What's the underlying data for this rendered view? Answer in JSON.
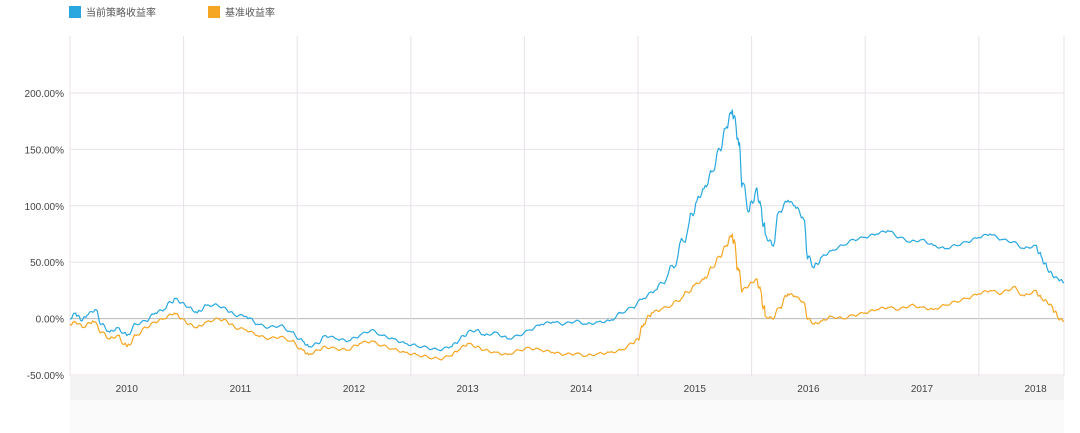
{
  "chart_data": {
    "type": "line",
    "title": "",
    "xlabel": "",
    "ylabel": "",
    "x_ticks": [
      "2010",
      "2011",
      "2012",
      "2013",
      "2014",
      "2015",
      "2016",
      "2017",
      "2018"
    ],
    "x_range": [
      2009.5,
      2018.25
    ],
    "y_ticks": [
      "200.00%",
      "150.00%",
      "100.00%",
      "50.00%",
      "0.00%",
      "-50.00%"
    ],
    "ylim": [
      -50,
      200
    ],
    "grid": true,
    "legend_position": "top-left",
    "series": [
      {
        "name": "当前策略收益率",
        "color": "#29a8e0",
        "points": [
          [
            2009.5,
            0
          ],
          [
            2009.55,
            5
          ],
          [
            2009.6,
            -2
          ],
          [
            2009.65,
            3
          ],
          [
            2009.72,
            8
          ],
          [
            2009.78,
            -5
          ],
          [
            2009.85,
            -12
          ],
          [
            2009.92,
            -8
          ],
          [
            2010.0,
            -15
          ],
          [
            2010.08,
            -5
          ],
          [
            2010.17,
            -2
          ],
          [
            2010.25,
            5
          ],
          [
            2010.33,
            8
          ],
          [
            2010.42,
            18
          ],
          [
            2010.48,
            14
          ],
          [
            2010.55,
            10
          ],
          [
            2010.62,
            5
          ],
          [
            2010.7,
            12
          ],
          [
            2010.8,
            12
          ],
          [
            2010.88,
            8
          ],
          [
            2010.95,
            3
          ],
          [
            2011.05,
            2
          ],
          [
            2011.15,
            -5
          ],
          [
            2011.25,
            -8
          ],
          [
            2011.35,
            -6
          ],
          [
            2011.45,
            -12
          ],
          [
            2011.55,
            -20
          ],
          [
            2011.6,
            -25
          ],
          [
            2011.68,
            -22
          ],
          [
            2011.75,
            -15
          ],
          [
            2011.85,
            -18
          ],
          [
            2011.95,
            -20
          ],
          [
            2012.05,
            -15
          ],
          [
            2012.15,
            -10
          ],
          [
            2012.25,
            -15
          ],
          [
            2012.35,
            -18
          ],
          [
            2012.45,
            -22
          ],
          [
            2012.55,
            -24
          ],
          [
            2012.65,
            -26
          ],
          [
            2012.75,
            -28
          ],
          [
            2012.85,
            -25
          ],
          [
            2012.92,
            -20
          ],
          [
            2013.0,
            -12
          ],
          [
            2013.08,
            -10
          ],
          [
            2013.15,
            -15
          ],
          [
            2013.25,
            -12
          ],
          [
            2013.35,
            -18
          ],
          [
            2013.45,
            -15
          ],
          [
            2013.55,
            -10
          ],
          [
            2013.65,
            -5
          ],
          [
            2013.75,
            -3
          ],
          [
            2013.85,
            -5
          ],
          [
            2013.95,
            -2
          ],
          [
            2014.05,
            -5
          ],
          [
            2014.15,
            -3
          ],
          [
            2014.25,
            -2
          ],
          [
            2014.35,
            5
          ],
          [
            2014.45,
            10
          ],
          [
            2014.55,
            18
          ],
          [
            2014.65,
            25
          ],
          [
            2014.75,
            35
          ],
          [
            2014.85,
            55
          ],
          [
            2014.95,
            85
          ],
          [
            2015.02,
            105
          ],
          [
            2015.08,
            115
          ],
          [
            2015.15,
            130
          ],
          [
            2015.22,
            150
          ],
          [
            2015.28,
            170
          ],
          [
            2015.33,
            185
          ],
          [
            2015.38,
            160
          ],
          [
            2015.42,
            120
          ],
          [
            2015.48,
            95
          ],
          [
            2015.54,
            115
          ],
          [
            2015.58,
            100
          ],
          [
            2015.62,
            75
          ],
          [
            2015.68,
            65
          ],
          [
            2015.75,
            95
          ],
          [
            2015.82,
            105
          ],
          [
            2015.88,
            100
          ],
          [
            2015.95,
            90
          ],
          [
            2016.0,
            55
          ],
          [
            2016.05,
            45
          ],
          [
            2016.12,
            55
          ],
          [
            2016.2,
            60
          ],
          [
            2016.3,
            65
          ],
          [
            2016.4,
            70
          ],
          [
            2016.5,
            72
          ],
          [
            2016.6,
            75
          ],
          [
            2016.7,
            78
          ],
          [
            2016.8,
            72
          ],
          [
            2016.9,
            68
          ],
          [
            2017.0,
            70
          ],
          [
            2017.1,
            65
          ],
          [
            2017.2,
            62
          ],
          [
            2017.3,
            65
          ],
          [
            2017.4,
            68
          ],
          [
            2017.5,
            72
          ],
          [
            2017.6,
            75
          ],
          [
            2017.7,
            70
          ],
          [
            2017.8,
            68
          ],
          [
            2017.9,
            62
          ],
          [
            2018.0,
            65
          ],
          [
            2018.05,
            55
          ],
          [
            2018.1,
            45
          ],
          [
            2018.15,
            38
          ],
          [
            2018.2,
            35
          ],
          [
            2018.25,
            32
          ]
        ]
      },
      {
        "name": "基准收益率",
        "color": "#f5a623",
        "points": [
          [
            2009.5,
            -5
          ],
          [
            2009.55,
            -3
          ],
          [
            2009.62,
            -8
          ],
          [
            2009.7,
            -2
          ],
          [
            2009.78,
            -12
          ],
          [
            2009.85,
            -18
          ],
          [
            2009.92,
            -15
          ],
          [
            2010.0,
            -25
          ],
          [
            2010.08,
            -15
          ],
          [
            2010.17,
            -8
          ],
          [
            2010.25,
            -3
          ],
          [
            2010.33,
            0
          ],
          [
            2010.42,
            5
          ],
          [
            2010.48,
            0
          ],
          [
            2010.55,
            -5
          ],
          [
            2010.62,
            -8
          ],
          [
            2010.7,
            -3
          ],
          [
            2010.8,
            0
          ],
          [
            2010.88,
            -2
          ],
          [
            2010.95,
            -8
          ],
          [
            2011.05,
            -10
          ],
          [
            2011.15,
            -15
          ],
          [
            2011.25,
            -18
          ],
          [
            2011.35,
            -16
          ],
          [
            2011.45,
            -20
          ],
          [
            2011.55,
            -28
          ],
          [
            2011.6,
            -32
          ],
          [
            2011.68,
            -28
          ],
          [
            2011.75,
            -25
          ],
          [
            2011.85,
            -27
          ],
          [
            2011.95,
            -28
          ],
          [
            2012.05,
            -22
          ],
          [
            2012.15,
            -20
          ],
          [
            2012.25,
            -24
          ],
          [
            2012.35,
            -27
          ],
          [
            2012.45,
            -30
          ],
          [
            2012.55,
            -32
          ],
          [
            2012.65,
            -34
          ],
          [
            2012.75,
            -36
          ],
          [
            2012.85,
            -33
          ],
          [
            2012.92,
            -28
          ],
          [
            2013.0,
            -22
          ],
          [
            2013.08,
            -25
          ],
          [
            2013.15,
            -28
          ],
          [
            2013.25,
            -30
          ],
          [
            2013.35,
            -32
          ],
          [
            2013.45,
            -28
          ],
          [
            2013.55,
            -26
          ],
          [
            2013.65,
            -28
          ],
          [
            2013.75,
            -30
          ],
          [
            2013.85,
            -32
          ],
          [
            2013.95,
            -31
          ],
          [
            2014.05,
            -33
          ],
          [
            2014.15,
            -31
          ],
          [
            2014.25,
            -30
          ],
          [
            2014.35,
            -28
          ],
          [
            2014.45,
            -22
          ],
          [
            2014.5,
            -18
          ],
          [
            2014.55,
            -5
          ],
          [
            2014.62,
            5
          ],
          [
            2014.7,
            8
          ],
          [
            2014.8,
            12
          ],
          [
            2014.9,
            20
          ],
          [
            2015.0,
            30
          ],
          [
            2015.08,
            35
          ],
          [
            2015.15,
            45
          ],
          [
            2015.22,
            55
          ],
          [
            2015.28,
            65
          ],
          [
            2015.33,
            75
          ],
          [
            2015.38,
            45
          ],
          [
            2015.42,
            25
          ],
          [
            2015.48,
            30
          ],
          [
            2015.54,
            35
          ],
          [
            2015.58,
            25
          ],
          [
            2015.62,
            2
          ],
          [
            2015.68,
            0
          ],
          [
            2015.75,
            10
          ],
          [
            2015.82,
            22
          ],
          [
            2015.88,
            20
          ],
          [
            2015.95,
            15
          ],
          [
            2016.0,
            0
          ],
          [
            2016.05,
            -5
          ],
          [
            2016.12,
            -2
          ],
          [
            2016.2,
            2
          ],
          [
            2016.3,
            0
          ],
          [
            2016.4,
            3
          ],
          [
            2016.5,
            5
          ],
          [
            2016.6,
            8
          ],
          [
            2016.7,
            10
          ],
          [
            2016.8,
            8
          ],
          [
            2016.9,
            12
          ],
          [
            2017.0,
            10
          ],
          [
            2017.1,
            8
          ],
          [
            2017.2,
            12
          ],
          [
            2017.3,
            15
          ],
          [
            2017.4,
            18
          ],
          [
            2017.5,
            22
          ],
          [
            2017.6,
            25
          ],
          [
            2017.7,
            22
          ],
          [
            2017.8,
            28
          ],
          [
            2017.9,
            20
          ],
          [
            2018.0,
            25
          ],
          [
            2018.05,
            18
          ],
          [
            2018.1,
            15
          ],
          [
            2018.15,
            10
          ],
          [
            2018.2,
            0
          ],
          [
            2018.25,
            -2
          ]
        ]
      }
    ]
  }
}
